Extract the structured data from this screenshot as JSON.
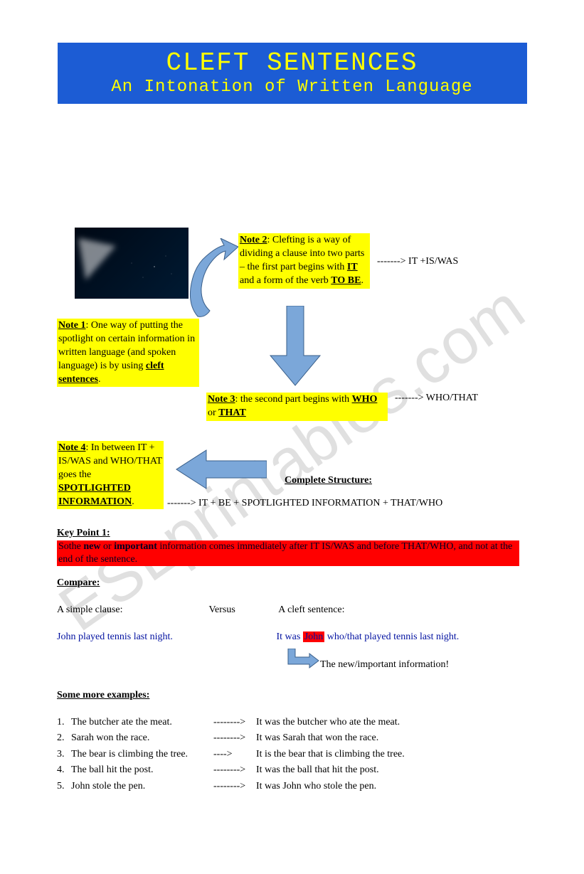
{
  "header": {
    "title": "CLEFT SENTENCES",
    "subtitle": "An Intonation of Written Language",
    "bg_color": "#1c5cd4",
    "text_color": "#ffff00"
  },
  "watermark_text": "ESLprintables.com",
  "notes": {
    "n1": {
      "label": "Note 1",
      "body": ": One way of putting the spotlight on certain information in written language (and spoken language) is by using ",
      "tail": "cleft sentences",
      "tail2": "."
    },
    "n2": {
      "label": "Note 2",
      "body": ": Clefting is a way of dividing a clause into two parts – the first part begins with ",
      "b1": "IT",
      "mid": " and a form of the verb ",
      "b2": "TO BE",
      "tail": "."
    },
    "n3": {
      "label": "Note 3",
      "body": ": the second part begins with ",
      "b1": "WHO",
      "mid": " or ",
      "b2": "THAT"
    },
    "n4": {
      "label": "Note 4",
      "body": ": In between IT + IS/WAS and WHO/THAT goes the ",
      "b1": "SPOTLIGHTED INFORMATION",
      "tail": "."
    }
  },
  "arrow_texts": {
    "a1": "-------> IT +IS/WAS",
    "a2": "-------> WHO/THAT",
    "a3": "------->  IT + BE + SPOTLIGHTED INFORMATION + THAT/WHO"
  },
  "complete_structure_label": "Complete Structure:",
  "key_point": {
    "label": "Key Point 1:",
    "body_pre": "Sothe ",
    "b1": "new",
    "mid1": " or ",
    "b2": "important",
    "body_rest": " information comes immediately after IT IS/WAS and before THAT/WHO, and not at the end of the sentence."
  },
  "compare": {
    "label": "Compare:",
    "h1": "A simple clause:",
    "hv": "Versus",
    "h2": "A cleft sentence:",
    "simple": "John played tennis last night.",
    "cleft_pre": "It was ",
    "cleft_hl": "John",
    "cleft_post": " who/that played tennis last night.",
    "callout": "The new/important information!"
  },
  "examples": {
    "label": "Some more examples:",
    "rows": [
      {
        "n": "1.",
        "src": "The butcher ate the meat.",
        "dash": "-------->",
        "dst": "It was the butcher who ate the meat."
      },
      {
        "n": "2.",
        "src": "Sarah won the race.",
        "dash": "-------->",
        "dst": "It was Sarah that won the race."
      },
      {
        "n": "3.",
        "src": "The bear is climbing the tree.",
        "dash": "---->",
        "dst": "It is the bear that is climbing the tree."
      },
      {
        "n": "4.",
        "src": "The ball hit the post.",
        "dash": "-------->",
        "dst": "It was the ball that hit the post."
      },
      {
        "n": "5.",
        "src": "John stole the pen.",
        "dash": "-------->",
        "dst": "It was John who stole the pen."
      }
    ]
  },
  "styling": {
    "note_bg": "#ffff00",
    "key_bg": "#ff0000",
    "arrow_fill": "#7ba7d9",
    "arrow_stroke": "#3a5f8a",
    "blue_text": "#0010a0",
    "page_bg": "#ffffff",
    "watermark_color": "#e0e0e0"
  }
}
